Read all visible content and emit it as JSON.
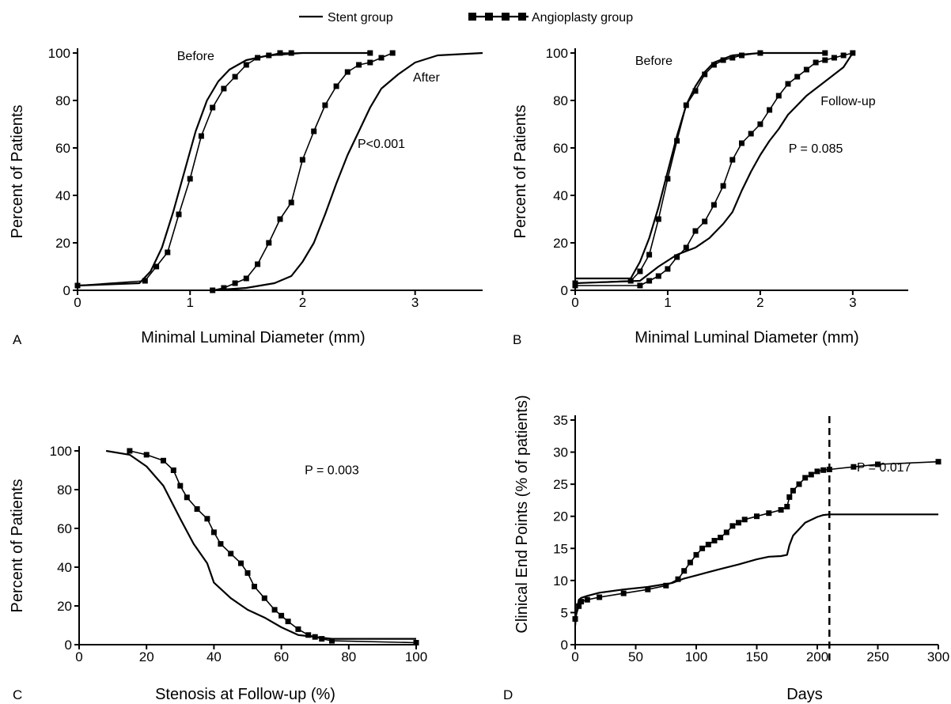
{
  "legend": {
    "stent_label": "Stent group",
    "angioplasty_label": "Angioplasty group",
    "placement": "top-center"
  },
  "colors": {
    "ink": "#000000",
    "background": "#ffffff"
  },
  "chart_data": [
    {
      "panel": "A",
      "type": "line",
      "xlabel": "Minimal Luminal Diameter (mm)",
      "ylabel": "Percent of Patients",
      "xlim": [
        0,
        3.6
      ],
      "ylim": [
        0,
        100
      ],
      "xticks": [
        "0",
        "1",
        "2",
        "3"
      ],
      "yticks": [
        "0",
        "20",
        "40",
        "60",
        "80",
        "100"
      ],
      "grid": false,
      "annotations": [
        {
          "text": "Before",
          "x": 1.05,
          "y": 97
        },
        {
          "text": "After",
          "x": 3.1,
          "y": 88
        },
        {
          "text": "P<0.001",
          "x": 2.7,
          "y": 60
        }
      ],
      "series": [
        {
          "name": "Stent group",
          "subset": "Before",
          "marker": "none",
          "x": [
            0,
            0.55,
            0.65,
            0.75,
            0.85,
            0.95,
            1.05,
            1.15,
            1.25,
            1.35,
            1.5,
            1.7,
            2.0,
            2.6
          ],
          "y": [
            2,
            3,
            8,
            18,
            33,
            50,
            67,
            80,
            88,
            93,
            97,
            99,
            100,
            100
          ]
        },
        {
          "name": "Stent group",
          "subset": "After",
          "marker": "none",
          "x": [
            1.2,
            1.5,
            1.75,
            1.9,
            2.0,
            2.1,
            2.2,
            2.3,
            2.4,
            2.5,
            2.6,
            2.7,
            2.85,
            3.0,
            3.2,
            3.6
          ],
          "y": [
            0,
            1,
            3,
            6,
            12,
            20,
            32,
            45,
            57,
            67,
            77,
            85,
            91,
            96,
            99,
            100
          ]
        },
        {
          "name": "Angioplasty group",
          "subset": "Before",
          "marker": "square",
          "x": [
            0,
            0.6,
            0.7,
            0.8,
            0.9,
            1.0,
            1.1,
            1.2,
            1.3,
            1.4,
            1.5,
            1.6,
            1.7,
            1.8,
            1.9,
            2.6
          ],
          "y": [
            2,
            4,
            10,
            16,
            32,
            47,
            65,
            77,
            85,
            90,
            95,
            98,
            99,
            100,
            100,
            100
          ]
        },
        {
          "name": "Angioplasty group",
          "subset": "After",
          "marker": "square",
          "x": [
            1.2,
            1.3,
            1.4,
            1.5,
            1.6,
            1.7,
            1.8,
            1.9,
            2.0,
            2.1,
            2.2,
            2.3,
            2.4,
            2.5,
            2.6,
            2.7,
            2.8
          ],
          "y": [
            0,
            1,
            3,
            5,
            11,
            20,
            30,
            37,
            55,
            67,
            78,
            86,
            92,
            95,
            96,
            98,
            100
          ]
        }
      ]
    },
    {
      "panel": "B",
      "type": "line",
      "xlabel": "Minimal Luminal Diameter (mm)",
      "ylabel": "Percent of Patients",
      "xlim": [
        0,
        3.6
      ],
      "ylim": [
        0,
        100
      ],
      "xticks": [
        "0",
        "1",
        "2",
        "3"
      ],
      "yticks": [
        "0",
        "20",
        "40",
        "60",
        "80",
        "100"
      ],
      "grid": false,
      "annotations": [
        {
          "text": "Before",
          "x": 0.85,
          "y": 95
        },
        {
          "text": "Follow-up",
          "x": 2.95,
          "y": 78
        },
        {
          "text": "P = 0.085",
          "x": 2.6,
          "y": 58
        }
      ],
      "series": [
        {
          "name": "Stent group",
          "subset": "Before",
          "marker": "none",
          "x": [
            0,
            0.6,
            0.7,
            0.8,
            0.9,
            1.0,
            1.1,
            1.2,
            1.3,
            1.4,
            1.5,
            1.7,
            2.0,
            2.7
          ],
          "y": [
            5,
            5,
            12,
            22,
            35,
            50,
            65,
            78,
            86,
            92,
            96,
            99,
            100,
            100
          ]
        },
        {
          "name": "Stent group",
          "subset": "Follow-up",
          "marker": "none",
          "x": [
            0,
            0.7,
            0.9,
            1.1,
            1.3,
            1.45,
            1.6,
            1.7,
            1.8,
            1.9,
            2.0,
            2.1,
            2.2,
            2.3,
            2.5,
            2.7,
            2.9,
            3.0
          ],
          "y": [
            3,
            4,
            10,
            15,
            18,
            22,
            28,
            33,
            42,
            50,
            57,
            63,
            68,
            74,
            82,
            88,
            94,
            100
          ]
        },
        {
          "name": "Angioplasty group",
          "subset": "Before",
          "marker": "square",
          "x": [
            0,
            0.6,
            0.7,
            0.8,
            0.9,
            1.0,
            1.1,
            1.2,
            1.3,
            1.4,
            1.5,
            1.6,
            1.7,
            1.8,
            2.0,
            2.7
          ],
          "y": [
            3,
            4,
            8,
            15,
            30,
            47,
            63,
            78,
            84,
            91,
            95,
            97,
            98,
            99,
            100,
            100
          ]
        },
        {
          "name": "Angioplasty group",
          "subset": "Follow-up",
          "marker": "square",
          "x": [
            0,
            0.7,
            0.8,
            0.9,
            1.0,
            1.1,
            1.2,
            1.3,
            1.4,
            1.5,
            1.6,
            1.7,
            1.8,
            1.9,
            2.0,
            2.1,
            2.2,
            2.3,
            2.4,
            2.5,
            2.6,
            2.7,
            2.8,
            2.9,
            3.0
          ],
          "y": [
            2,
            2,
            4,
            6,
            9,
            14,
            18,
            25,
            29,
            36,
            44,
            55,
            62,
            66,
            70,
            76,
            82,
            87,
            90,
            93,
            96,
            97,
            98,
            99,
            100
          ]
        }
      ]
    },
    {
      "panel": "C",
      "type": "line",
      "xlabel": "Stenosis at Follow-up (%)",
      "ylabel": "Percent of Patients",
      "xlim": [
        0,
        100
      ],
      "ylim": [
        0,
        100
      ],
      "xticks": [
        "0",
        "20",
        "40",
        "60",
        "80",
        "100"
      ],
      "yticks": [
        "0",
        "20",
        "40",
        "60",
        "80",
        "100"
      ],
      "grid": false,
      "annotations": [
        {
          "text": "P = 0.003",
          "x": 75,
          "y": 88
        }
      ],
      "series": [
        {
          "name": "Stent group",
          "marker": "none",
          "x": [
            8,
            15,
            20,
            25,
            30,
            34,
            38,
            40,
            45,
            50,
            55,
            60,
            65,
            70,
            75,
            100
          ],
          "y": [
            100,
            98,
            92,
            82,
            65,
            52,
            42,
            32,
            24,
            18,
            14,
            9,
            5,
            4,
            3,
            3
          ]
        },
        {
          "name": "Angioplasty group",
          "marker": "square",
          "x": [
            15,
            20,
            25,
            28,
            30,
            32,
            35,
            38,
            40,
            42,
            45,
            48,
            50,
            52,
            55,
            58,
            60,
            62,
            65,
            68,
            70,
            72,
            75,
            100
          ],
          "y": [
            100,
            98,
            95,
            90,
            82,
            76,
            70,
            65,
            58,
            52,
            47,
            42,
            37,
            30,
            24,
            18,
            15,
            12,
            8,
            5,
            4,
            3,
            2,
            1
          ]
        }
      ]
    },
    {
      "panel": "D",
      "type": "line",
      "xlabel": "Days",
      "ylabel": "Clinical End Points (% of patients)",
      "xlim": [
        0,
        300
      ],
      "ylim": [
        0,
        35
      ],
      "xticks": [
        "0",
        "50",
        "100",
        "150",
        "200",
        "250",
        "300"
      ],
      "yticks": [
        "0",
        "5",
        "10",
        "15",
        "20",
        "25",
        "30",
        "35"
      ],
      "grid": false,
      "annotations": [
        {
          "text": "P = 0.017",
          "x": 255,
          "y": 27
        },
        {
          "text": "",
          "type": "dashed-vertical-line",
          "x": 210
        }
      ],
      "series": [
        {
          "name": "Stent group",
          "marker": "none",
          "x": [
            0,
            1,
            3,
            5,
            10,
            20,
            40,
            60,
            80,
            90,
            100,
            110,
            120,
            135,
            150,
            160,
            170,
            175,
            177,
            180,
            190,
            200,
            205,
            210,
            300
          ],
          "y": [
            3,
            5,
            7,
            7.3,
            7.6,
            8.1,
            8.6,
            9,
            9.6,
            10.3,
            10.8,
            11.3,
            11.8,
            12.5,
            13.3,
            13.7,
            13.8,
            14,
            15.5,
            17,
            19,
            19.9,
            20.2,
            20.3,
            20.3
          ]
        },
        {
          "name": "Angioplasty group",
          "marker": "square",
          "x": [
            0,
            3,
            5,
            10,
            20,
            40,
            60,
            75,
            85,
            90,
            95,
            100,
            105,
            110,
            115,
            120,
            125,
            130,
            135,
            140,
            150,
            160,
            170,
            175,
            177,
            180,
            185,
            190,
            195,
            200,
            205,
            210,
            230,
            250,
            300
          ],
          "y": [
            4,
            6,
            6.7,
            7,
            7.4,
            8,
            8.6,
            9.2,
            10.2,
            11.5,
            12.8,
            14,
            15,
            15.6,
            16.2,
            16.7,
            17.5,
            18.5,
            19,
            19.5,
            20,
            20.5,
            21,
            21.5,
            23,
            24,
            25,
            26,
            26.5,
            27,
            27.2,
            27.3,
            27.7,
            28.1,
            28.5
          ]
        }
      ]
    }
  ]
}
